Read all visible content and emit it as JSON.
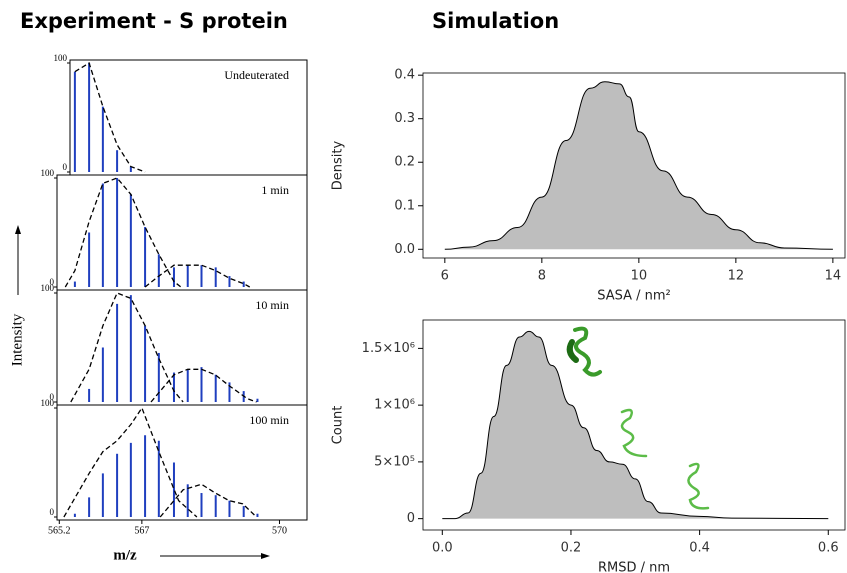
{
  "panels": {
    "experiment": {
      "title": "Experiment - S protein",
      "ylabel": "Intensity",
      "xlabel": "m/z"
    },
    "simulation": {
      "title": "Simulation"
    }
  },
  "chart_data": [
    {
      "type": "stick",
      "label": "Undeuterated",
      "color": "#1f3fbf",
      "x": [
        565.54,
        565.85,
        566.15,
        566.46,
        566.76
      ],
      "values": [
        92,
        100,
        60,
        20,
        5
      ],
      "envelopes": [
        {
          "x": [
            565.54,
            565.85,
            566.15,
            566.46,
            566.76,
            567.07
          ],
          "values": [
            92,
            100,
            60,
            25,
            5,
            0
          ]
        }
      ],
      "xlim": [
        565.15,
        570.6
      ],
      "ylim": [
        0,
        100
      ],
      "yticks": [
        0,
        100
      ]
    },
    {
      "type": "stick",
      "label": "1 min",
      "color": "#1f3fbf",
      "x": [
        565.54,
        565.85,
        566.15,
        566.46,
        566.76,
        567.07,
        567.37,
        567.7,
        568.0,
        568.3,
        568.61,
        568.91,
        569.22
      ],
      "values": [
        5,
        50,
        95,
        100,
        85,
        55,
        30,
        18,
        20,
        20,
        18,
        10,
        5
      ],
      "envelopes": [
        {
          "x": [
            565.33,
            565.54,
            565.85,
            566.15,
            566.46,
            566.76,
            567.07,
            567.37,
            567.7,
            567.85
          ],
          "values": [
            0,
            15,
            60,
            95,
            100,
            85,
            55,
            30,
            5,
            0
          ]
        },
        {
          "x": [
            567.07,
            567.37,
            567.7,
            568.0,
            568.3,
            568.61,
            568.91,
            569.22,
            569.35
          ],
          "values": [
            0,
            10,
            20,
            20,
            20,
            15,
            8,
            3,
            0
          ]
        }
      ],
      "xlim": [
        565.15,
        570.6
      ],
      "ylim": [
        0,
        100
      ],
      "yticks": [
        0,
        100
      ]
    },
    {
      "type": "stick",
      "label": "10 min",
      "color": "#1f3fbf",
      "x": [
        565.85,
        566.15,
        566.46,
        566.76,
        567.07,
        567.37,
        567.7,
        568.0,
        568.3,
        568.61,
        568.91,
        569.22,
        569.52
      ],
      "values": [
        12,
        50,
        90,
        98,
        70,
        45,
        27,
        30,
        32,
        25,
        18,
        10,
        3
      ],
      "envelopes": [
        {
          "x": [
            565.45,
            565.85,
            566.15,
            566.46,
            566.76,
            567.07,
            567.37,
            567.7,
            567.9
          ],
          "values": [
            0,
            30,
            70,
            100,
            95,
            70,
            40,
            10,
            0
          ]
        },
        {
          "x": [
            567.2,
            567.7,
            568.0,
            568.3,
            568.6,
            568.9,
            569.3,
            569.5
          ],
          "values": [
            0,
            25,
            30,
            30,
            25,
            15,
            3,
            0
          ]
        }
      ],
      "xlim": [
        565.15,
        570.6
      ],
      "ylim": [
        0,
        100
      ],
      "yticks": [
        0,
        100
      ]
    },
    {
      "type": "stick",
      "label": "100 min",
      "color": "#1f3fbf",
      "x": [
        565.54,
        565.85,
        566.15,
        566.46,
        566.76,
        567.07,
        567.37,
        567.7,
        568.0,
        568.3,
        568.61,
        568.91,
        569.22,
        569.52
      ],
      "values": [
        3,
        18,
        40,
        58,
        68,
        75,
        70,
        50,
        30,
        22,
        20,
        15,
        10,
        3
      ],
      "envelopes": [
        {
          "x": [
            565.3,
            565.85,
            566.15,
            566.46,
            566.76,
            567.0,
            567.37,
            567.8,
            568.2
          ],
          "values": [
            0,
            40,
            60,
            70,
            85,
            100,
            60,
            15,
            0
          ]
        },
        {
          "x": [
            567.4,
            567.9,
            568.3,
            568.6,
            568.9,
            569.2,
            569.5
          ],
          "values": [
            0,
            25,
            30,
            22,
            15,
            12,
            0
          ]
        }
      ],
      "xlim": [
        565.15,
        570.6
      ],
      "ylim": [
        0,
        100
      ],
      "yticks": [
        0,
        100
      ],
      "xticks": [
        565.2,
        567,
        570
      ]
    },
    {
      "type": "area",
      "color": "#bebebe",
      "xlabel": "SASA / nm²",
      "ylabel": "Density",
      "x": [
        6,
        6.5,
        7,
        7.5,
        8,
        8.5,
        9,
        9.3,
        9.6,
        9.8,
        10,
        10.5,
        11,
        11.5,
        12,
        12.5,
        13,
        14
      ],
      "values": [
        0.0,
        0.005,
        0.02,
        0.05,
        0.12,
        0.25,
        0.37,
        0.385,
        0.38,
        0.35,
        0.27,
        0.18,
        0.12,
        0.08,
        0.045,
        0.015,
        0.003,
        0.0
      ],
      "xlim": [
        5.55,
        14.25
      ],
      "ylim": [
        -0.02,
        0.405
      ],
      "xticks": [
        6,
        8,
        10,
        12,
        14
      ],
      "yticks": [
        {
          "value": 0,
          "label": "0.0"
        },
        0.1,
        0.2,
        0.3,
        0.4
      ]
    },
    {
      "type": "area",
      "color": "#bebebe",
      "xlabel": "RMSD / nm",
      "ylabel": "Count",
      "x": [
        0,
        0.02,
        0.04,
        0.06,
        0.08,
        0.1,
        0.12,
        0.135,
        0.15,
        0.17,
        0.2,
        0.22,
        0.24,
        0.26,
        0.28,
        0.3,
        0.32,
        0.34,
        0.4,
        0.45,
        0.6
      ],
      "values": [
        0,
        500,
        50000,
        400000,
        900000,
        1350000,
        1600000,
        1650000,
        1600000,
        1350000,
        1000000,
        800000,
        600000,
        500000,
        480000,
        350000,
        150000,
        50000,
        20000,
        5000,
        0
      ],
      "xlim": [
        -0.03,
        0.626
      ],
      "ylim": [
        -100000,
        1750000
      ],
      "xticks": [
        {
          "value": 0,
          "label": "0.0"
        },
        0.2,
        0.4,
        0.6
      ],
      "yticks": [
        0,
        {
          "value": 500000,
          "label": "5×10⁵"
        },
        {
          "value": 1000000,
          "label": "1×10⁶"
        },
        {
          "value": 1500000,
          "label": "1.5×10⁶"
        }
      ]
    }
  ]
}
